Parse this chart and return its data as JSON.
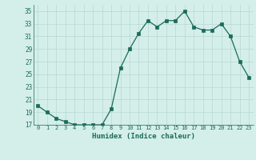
{
  "x": [
    0,
    1,
    2,
    3,
    4,
    5,
    6,
    7,
    8,
    9,
    10,
    11,
    12,
    13,
    14,
    15,
    16,
    17,
    18,
    19,
    20,
    21,
    22,
    23
  ],
  "y": [
    20,
    19,
    18,
    17.5,
    17,
    17,
    17,
    17,
    19.5,
    26,
    29,
    31.5,
    33.5,
    32.5,
    33.5,
    33.5,
    35,
    32.5,
    32,
    32,
    33,
    31,
    27,
    24.5
  ],
  "line_color": "#1a6b5a",
  "marker_color": "#1a6b5a",
  "bg_color": "#d4eeea",
  "grid_color": "#b8d8d4",
  "xlabel": "Humidex (Indice chaleur)",
  "ylim": [
    17,
    36
  ],
  "xlim": [
    -0.5,
    23.5
  ],
  "yticks": [
    17,
    19,
    21,
    23,
    25,
    27,
    29,
    31,
    33,
    35
  ],
  "xticks": [
    0,
    1,
    2,
    3,
    4,
    5,
    6,
    7,
    8,
    9,
    10,
    11,
    12,
    13,
    14,
    15,
    16,
    17,
    18,
    19,
    20,
    21,
    22,
    23
  ]
}
